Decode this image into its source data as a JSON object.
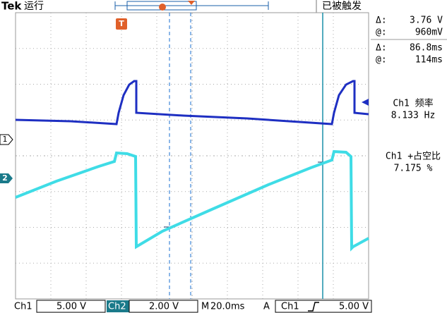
{
  "header": {
    "brand": "Tek",
    "run_state": "运行",
    "trigger_state": "已被触发",
    "trigger_marker": "T"
  },
  "channel_markers": {
    "ch1": "1",
    "ch2": "2",
    "trigger": "T"
  },
  "cursor_readout": {
    "amplitude_delta_label": "Δ:",
    "amplitude_delta": "3.76 V",
    "amplitude_at_label": "@:",
    "amplitude_at": "960mV",
    "time_delta_label": "Δ:",
    "time_delta": "86.8ms",
    "time_at_label": "@:",
    "time_at": "114ms"
  },
  "measurements": [
    {
      "label": "Ch1 频率",
      "value": "8.133 Hz"
    },
    {
      "label": "Ch1 +占空比",
      "value": "7.175 %"
    }
  ],
  "footer": {
    "ch1_label": "Ch1",
    "ch1_scale": "5.00 V",
    "ch2_label": "Ch2",
    "ch2_scale": "2.00 V",
    "time_label": "M",
    "time_scale": "20.0ms",
    "trigger_label": "A",
    "trigger_source": "Ch1",
    "trigger_level": "5.00 V"
  }
}
